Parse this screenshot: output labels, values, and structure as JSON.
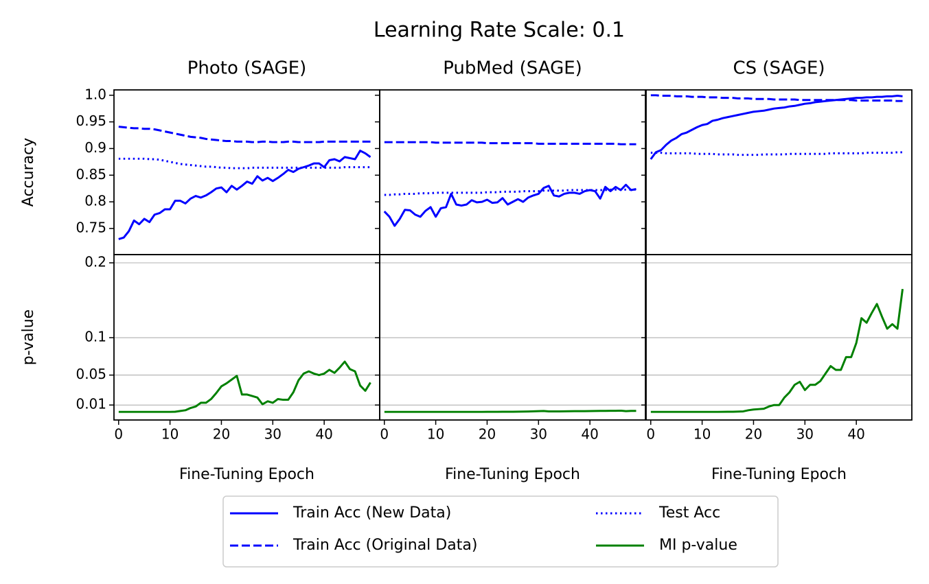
{
  "title": "Learning Rate Scale: 0.1",
  "chart_data": [
    {
      "type": "line",
      "title": "Photo (SAGE)",
      "ylabel": "Accuracy",
      "xlim": [
        -0.9,
        50.8
      ],
      "ylim": [
        0.701,
        1.01
      ],
      "yticks": [
        0.75,
        0.8,
        0.85,
        0.9,
        0.95,
        {
          "value": 1.0,
          "label": "1.0"
        }
      ],
      "x": [
        0,
        1,
        2,
        3,
        4,
        5,
        6,
        7,
        8,
        9,
        10,
        11,
        12,
        13,
        14,
        15,
        16,
        17,
        18,
        19,
        20,
        21,
        22,
        23,
        24,
        25,
        26,
        27,
        28,
        29,
        30,
        31,
        32,
        33,
        34,
        35,
        36,
        37,
        38,
        39,
        40,
        41,
        42,
        43,
        44,
        45,
        46,
        47,
        48,
        49
      ],
      "series": [
        {
          "name": "Train Acc (New Data)",
          "color": "#0000ff",
          "linestyle": "solid",
          "values": [
            0.73,
            0.733,
            0.745,
            0.765,
            0.758,
            0.768,
            0.762,
            0.776,
            0.779,
            0.786,
            0.786,
            0.802,
            0.802,
            0.797,
            0.806,
            0.811,
            0.808,
            0.812,
            0.818,
            0.825,
            0.827,
            0.818,
            0.83,
            0.823,
            0.83,
            0.838,
            0.834,
            0.848,
            0.84,
            0.845,
            0.839,
            0.845,
            0.852,
            0.86,
            0.856,
            0.862,
            0.865,
            0.868,
            0.872,
            0.872,
            0.865,
            0.878,
            0.88,
            0.876,
            0.884,
            0.882,
            0.88,
            0.896,
            0.891,
            0.884
          ]
        },
        {
          "name": "Train Acc (Original Data)",
          "color": "#0000ff",
          "linestyle": "dashed",
          "values": [
            0.941,
            0.94,
            0.939,
            0.938,
            0.938,
            0.937,
            0.937,
            0.936,
            0.934,
            0.932,
            0.93,
            0.928,
            0.926,
            0.924,
            0.922,
            0.921,
            0.92,
            0.918,
            0.917,
            0.916,
            0.915,
            0.914,
            0.914,
            0.913,
            0.913,
            0.913,
            0.912,
            0.912,
            0.913,
            0.913,
            0.912,
            0.912,
            0.912,
            0.913,
            0.913,
            0.912,
            0.912,
            0.912,
            0.912,
            0.912,
            0.913,
            0.913,
            0.913,
            0.913,
            0.913,
            0.913,
            0.913,
            0.913,
            0.913,
            0.913
          ]
        },
        {
          "name": "Test Acc",
          "color": "#0000ff",
          "linestyle": "dotted",
          "values": [
            0.881,
            0.881,
            0.881,
            0.881,
            0.881,
            0.881,
            0.88,
            0.88,
            0.879,
            0.877,
            0.875,
            0.873,
            0.871,
            0.87,
            0.869,
            0.868,
            0.867,
            0.866,
            0.866,
            0.865,
            0.864,
            0.864,
            0.863,
            0.863,
            0.863,
            0.863,
            0.864,
            0.864,
            0.864,
            0.864,
            0.864,
            0.864,
            0.864,
            0.864,
            0.864,
            0.864,
            0.864,
            0.864,
            0.864,
            0.864,
            0.864,
            0.864,
            0.864,
            0.864,
            0.865,
            0.865,
            0.865,
            0.865,
            0.865,
            0.865
          ]
        }
      ]
    },
    {
      "type": "line",
      "title": "PubMed (SAGE)",
      "xlim": [
        -0.9,
        50.8
      ],
      "ylim": [
        0.701,
        1.01
      ],
      "x": [
        0,
        1,
        2,
        3,
        4,
        5,
        6,
        7,
        8,
        9,
        10,
        11,
        12,
        13,
        14,
        15,
        16,
        17,
        18,
        19,
        20,
        21,
        22,
        23,
        24,
        25,
        26,
        27,
        28,
        29,
        30,
        31,
        32,
        33,
        34,
        35,
        36,
        37,
        38,
        39,
        40,
        41,
        42,
        43,
        44,
        45,
        46,
        47,
        48,
        49
      ],
      "series": [
        {
          "color": "#0000ff",
          "linestyle": "solid",
          "values": [
            0.782,
            0.772,
            0.755,
            0.768,
            0.785,
            0.784,
            0.776,
            0.772,
            0.783,
            0.79,
            0.772,
            0.788,
            0.79,
            0.815,
            0.795,
            0.793,
            0.795,
            0.803,
            0.799,
            0.8,
            0.804,
            0.798,
            0.799,
            0.807,
            0.795,
            0.8,
            0.805,
            0.8,
            0.808,
            0.812,
            0.815,
            0.826,
            0.83,
            0.812,
            0.81,
            0.815,
            0.817,
            0.817,
            0.815,
            0.82,
            0.822,
            0.82,
            0.806,
            0.828,
            0.82,
            0.828,
            0.822,
            0.832,
            0.822,
            0.824
          ]
        },
        {
          "color": "#0000ff",
          "linestyle": "dashed",
          "values": [
            0.912,
            0.912,
            0.912,
            0.912,
            0.912,
            0.912,
            0.912,
            0.912,
            0.912,
            0.912,
            0.911,
            0.911,
            0.911,
            0.911,
            0.911,
            0.911,
            0.911,
            0.911,
            0.911,
            0.911,
            0.91,
            0.91,
            0.91,
            0.91,
            0.91,
            0.91,
            0.91,
            0.91,
            0.91,
            0.91,
            0.909,
            0.909,
            0.909,
            0.909,
            0.909,
            0.909,
            0.909,
            0.909,
            0.909,
            0.909,
            0.909,
            0.909,
            0.909,
            0.909,
            0.909,
            0.909,
            0.908,
            0.908,
            0.908,
            0.908
          ]
        },
        {
          "color": "#0000ff",
          "linestyle": "dotted",
          "values": [
            0.813,
            0.813,
            0.814,
            0.814,
            0.815,
            0.815,
            0.815,
            0.816,
            0.816,
            0.816,
            0.817,
            0.817,
            0.817,
            0.817,
            0.817,
            0.817,
            0.817,
            0.817,
            0.817,
            0.817,
            0.818,
            0.818,
            0.818,
            0.819,
            0.819,
            0.819,
            0.819,
            0.82,
            0.82,
            0.82,
            0.82,
            0.821,
            0.821,
            0.821,
            0.821,
            0.821,
            0.822,
            0.822,
            0.822,
            0.822,
            0.822,
            0.822,
            0.822,
            0.822,
            0.823,
            0.823,
            0.823,
            0.823,
            0.823,
            0.823
          ]
        }
      ]
    },
    {
      "type": "line",
      "title": "CS (SAGE)",
      "xlim": [
        -0.9,
        50.8
      ],
      "ylim": [
        0.701,
        1.01
      ],
      "x": [
        0,
        1,
        2,
        3,
        4,
        5,
        6,
        7,
        8,
        9,
        10,
        11,
        12,
        13,
        14,
        15,
        16,
        17,
        18,
        19,
        20,
        21,
        22,
        23,
        24,
        25,
        26,
        27,
        28,
        29,
        30,
        31,
        32,
        33,
        34,
        35,
        36,
        37,
        38,
        39,
        40,
        41,
        42,
        43,
        44,
        45,
        46,
        47,
        48,
        49
      ],
      "series": [
        {
          "color": "#0000ff",
          "linestyle": "solid",
          "values": [
            0.88,
            0.893,
            0.897,
            0.907,
            0.915,
            0.92,
            0.927,
            0.93,
            0.935,
            0.94,
            0.944,
            0.946,
            0.952,
            0.954,
            0.957,
            0.959,
            0.961,
            0.963,
            0.965,
            0.967,
            0.969,
            0.97,
            0.971,
            0.973,
            0.975,
            0.976,
            0.977,
            0.979,
            0.98,
            0.982,
            0.984,
            0.985,
            0.987,
            0.988,
            0.989,
            0.99,
            0.991,
            0.992,
            0.993,
            0.994,
            0.995,
            0.995,
            0.996,
            0.996,
            0.997,
            0.997,
            0.998,
            0.998,
            0.999,
            0.998
          ]
        },
        {
          "color": "#0000ff",
          "linestyle": "dashed",
          "values": [
            1.0,
            1.0,
            0.999,
            0.999,
            0.999,
            0.998,
            0.998,
            0.998,
            0.997,
            0.997,
            0.997,
            0.996,
            0.996,
            0.996,
            0.995,
            0.995,
            0.995,
            0.994,
            0.994,
            0.994,
            0.993,
            0.993,
            0.993,
            0.993,
            0.992,
            0.992,
            0.992,
            0.992,
            0.992,
            0.991,
            0.991,
            0.991,
            0.991,
            0.991,
            0.991,
            0.991,
            0.991,
            0.991,
            0.991,
            0.991,
            0.99,
            0.99,
            0.99,
            0.99,
            0.99,
            0.99,
            0.99,
            0.99,
            0.989,
            0.989
          ]
        },
        {
          "color": "#0000ff",
          "linestyle": "dotted",
          "values": [
            0.892,
            0.892,
            0.892,
            0.891,
            0.891,
            0.891,
            0.891,
            0.891,
            0.891,
            0.89,
            0.89,
            0.89,
            0.89,
            0.889,
            0.889,
            0.889,
            0.889,
            0.888,
            0.888,
            0.888,
            0.888,
            0.888,
            0.889,
            0.889,
            0.889,
            0.889,
            0.889,
            0.89,
            0.89,
            0.89,
            0.89,
            0.89,
            0.89,
            0.89,
            0.89,
            0.891,
            0.891,
            0.891,
            0.891,
            0.891,
            0.891,
            0.891,
            0.892,
            0.892,
            0.892,
            0.892,
            0.892,
            0.892,
            0.893,
            0.893
          ]
        }
      ]
    },
    {
      "type": "line",
      "xlabel": "Fine-Tuning Epoch",
      "ylabel": "p-value",
      "grid": true,
      "xlim": [
        -0.9,
        50.8
      ],
      "xticks": [
        0,
        10,
        20,
        30,
        40
      ],
      "ylim": [
        -0.01,
        0.211
      ],
      "yticks": [
        0.01,
        0.05,
        0.1,
        0.2
      ],
      "x": [
        0,
        1,
        2,
        3,
        4,
        5,
        6,
        7,
        8,
        9,
        10,
        11,
        12,
        13,
        14,
        15,
        16,
        17,
        18,
        19,
        20,
        21,
        22,
        23,
        24,
        25,
        26,
        27,
        28,
        29,
        30,
        31,
        32,
        33,
        34,
        35,
        36,
        37,
        38,
        39,
        40,
        41,
        42,
        43,
        44,
        45,
        46,
        47,
        48,
        49
      ],
      "series": [
        {
          "name": "MI p-value",
          "color": "#008000",
          "linestyle": "solid",
          "values": [
            0.0008,
            0.0008,
            0.0008,
            0.0008,
            0.0008,
            0.0008,
            0.0008,
            0.0008,
            0.0008,
            0.0008,
            0.0008,
            0.001,
            0.002,
            0.003,
            0.006,
            0.008,
            0.013,
            0.013,
            0.018,
            0.026,
            0.035,
            0.039,
            0.044,
            0.049,
            0.024,
            0.024,
            0.022,
            0.02,
            0.011,
            0.015,
            0.013,
            0.018,
            0.017,
            0.017,
            0.027,
            0.043,
            0.052,
            0.055,
            0.052,
            0.05,
            0.052,
            0.057,
            0.053,
            0.06,
            0.068,
            0.058,
            0.055,
            0.036,
            0.029,
            0.04
          ]
        }
      ]
    },
    {
      "type": "line",
      "xlabel": "Fine-Tuning Epoch",
      "grid": true,
      "xlim": [
        -0.9,
        50.8
      ],
      "xticks": [
        0,
        10,
        20,
        30,
        40
      ],
      "ylim": [
        -0.01,
        0.211
      ],
      "x": [
        0,
        1,
        2,
        3,
        4,
        5,
        6,
        7,
        8,
        9,
        10,
        11,
        12,
        13,
        14,
        15,
        16,
        17,
        18,
        19,
        20,
        21,
        22,
        23,
        24,
        25,
        26,
        27,
        28,
        29,
        30,
        31,
        32,
        33,
        34,
        35,
        36,
        37,
        38,
        39,
        40,
        41,
        42,
        43,
        44,
        45,
        46,
        47,
        48,
        49
      ],
      "series": [
        {
          "color": "#008000",
          "linestyle": "solid",
          "values": [
            0.0008,
            0.0008,
            0.0008,
            0.0008,
            0.0008,
            0.0008,
            0.0008,
            0.0008,
            0.0008,
            0.0008,
            0.0008,
            0.0008,
            0.0008,
            0.0008,
            0.0008,
            0.0008,
            0.0008,
            0.0008,
            0.0008,
            0.0008,
            0.0009,
            0.0009,
            0.0009,
            0.001,
            0.001,
            0.001,
            0.0011,
            0.0012,
            0.0014,
            0.0016,
            0.0018,
            0.002,
            0.0015,
            0.0015,
            0.0015,
            0.0016,
            0.0017,
            0.0018,
            0.0018,
            0.0018,
            0.0019,
            0.002,
            0.0021,
            0.0022,
            0.0023,
            0.0023,
            0.0025,
            0.0018,
            0.0022,
            0.0022
          ]
        }
      ]
    },
    {
      "type": "line",
      "xlabel": "Fine-Tuning Epoch",
      "grid": true,
      "xlim": [
        -0.9,
        50.8
      ],
      "xticks": [
        0,
        10,
        20,
        30,
        40
      ],
      "ylim": [
        -0.01,
        0.211
      ],
      "x": [
        0,
        1,
        2,
        3,
        4,
        5,
        6,
        7,
        8,
        9,
        10,
        11,
        12,
        13,
        14,
        15,
        16,
        17,
        18,
        19,
        20,
        21,
        22,
        23,
        24,
        25,
        26,
        27,
        28,
        29,
        30,
        31,
        32,
        33,
        34,
        35,
        36,
        37,
        38,
        39,
        40,
        41,
        42,
        43,
        44,
        45,
        46,
        47,
        48,
        49
      ],
      "series": [
        {
          "color": "#008000",
          "linestyle": "solid",
          "values": [
            0.0008,
            0.0008,
            0.0008,
            0.0008,
            0.0008,
            0.0008,
            0.0008,
            0.0008,
            0.0008,
            0.0008,
            0.0008,
            0.0008,
            0.0008,
            0.0008,
            0.0009,
            0.001,
            0.001,
            0.0012,
            0.0015,
            0.003,
            0.004,
            0.0045,
            0.005,
            0.008,
            0.01,
            0.01,
            0.02,
            0.027,
            0.037,
            0.041,
            0.03,
            0.037,
            0.037,
            0.042,
            0.052,
            0.062,
            0.057,
            0.057,
            0.074,
            0.074,
            0.093,
            0.126,
            0.12,
            0.133,
            0.145,
            0.128,
            0.112,
            0.118,
            0.112,
            0.165
          ]
        }
      ]
    }
  ]
}
